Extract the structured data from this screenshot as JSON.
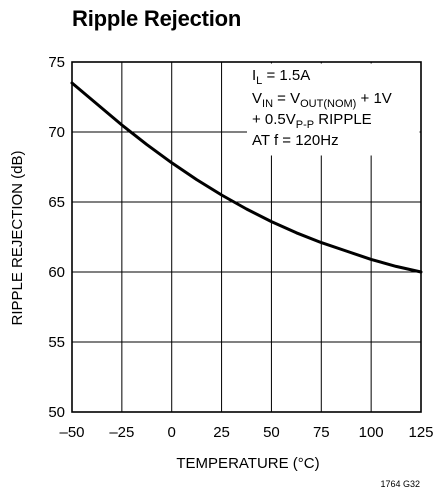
{
  "title": "Ripple Rejection",
  "figure_id": "1764 G32",
  "annotation": {
    "line1": {
      "base": "I",
      "sub": "L",
      "rest": " = 1.5A"
    },
    "line2": {
      "base1": "V",
      "sub1": "IN",
      "mid": " = V",
      "sub2": "OUT(NOM)",
      "rest": " + 1V"
    },
    "line3": {
      "pre": "+ 0.5V",
      "sub": "P-P",
      "rest": " RIPPLE"
    },
    "line4": "AT f = 120Hz"
  },
  "chart_data": {
    "type": "line",
    "title": "Ripple Rejection",
    "xlabel": "TEMPERATURE (°C)",
    "ylabel": "RIPPLE REJECTION (dB)",
    "xlim": [
      -50,
      125
    ],
    "ylim": [
      50,
      75
    ],
    "xticks": [
      -50,
      -25,
      0,
      25,
      50,
      75,
      100,
      125
    ],
    "xtick_labels": [
      "–50",
      "–25",
      "0",
      "25",
      "50",
      "75",
      "100",
      "125"
    ],
    "yticks": [
      50,
      55,
      60,
      65,
      70,
      75
    ],
    "ytick_labels": [
      "50",
      "55",
      "60",
      "65",
      "70",
      "75"
    ],
    "grid": true,
    "series": [
      {
        "x": [
          -50,
          -37.5,
          -25,
          -12.5,
          0,
          12.5,
          25,
          37.5,
          50,
          62.5,
          75,
          87.5,
          100,
          112.5,
          125
        ],
        "y": [
          73.5,
          72.0,
          70.5,
          69.1,
          67.8,
          66.6,
          65.5,
          64.5,
          63.6,
          62.8,
          62.1,
          61.5,
          60.9,
          60.4,
          60.0
        ]
      }
    ]
  }
}
